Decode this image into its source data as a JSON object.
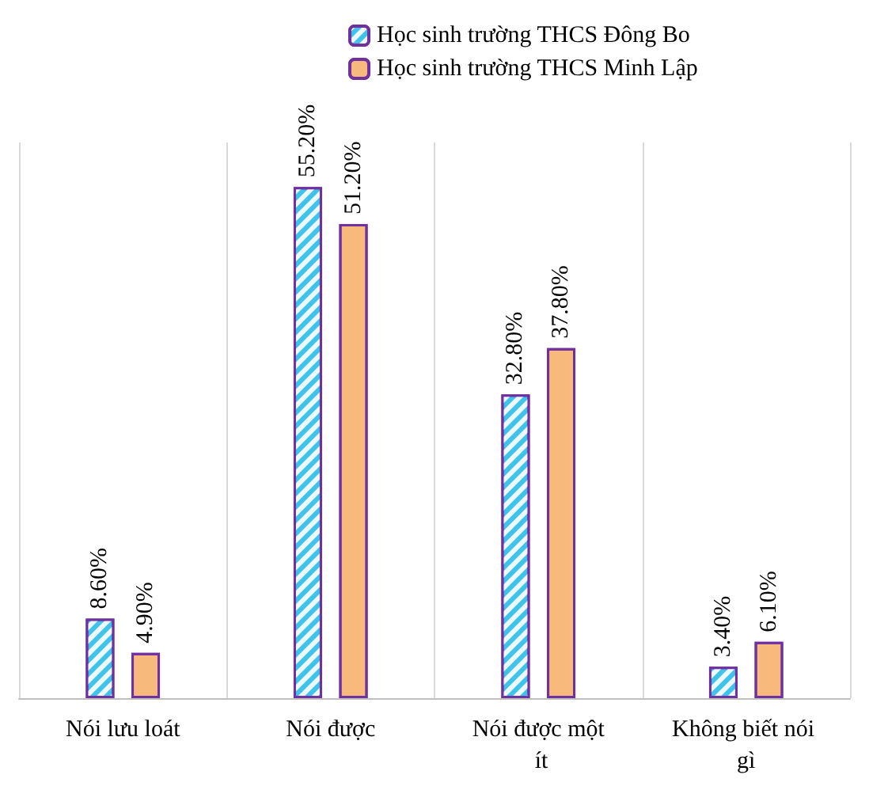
{
  "chart_data": {
    "type": "bar",
    "categories": [
      "Nói lưu loát",
      "Nói được",
      "Nói được một ít",
      "Không biết nói gì"
    ],
    "series": [
      {
        "name": "Học sinh trường THCS Đông Bo",
        "color": "#3fc3ea",
        "values": [
          8.6,
          55.2,
          32.8,
          3.4
        ],
        "value_labels": [
          "8.60%",
          "55.20%",
          "32.80%",
          "3.40%"
        ]
      },
      {
        "name": "Học sinh trường THCS Minh Lập",
        "color": "#f8b97c",
        "values": [
          4.9,
          51.2,
          37.8,
          6.1
        ],
        "value_labels": [
          "4.90%",
          "51.20%",
          "37.80%",
          "6.10%"
        ]
      }
    ],
    "grid": "x",
    "legend": "top",
    "tick_labels": "x"
  }
}
